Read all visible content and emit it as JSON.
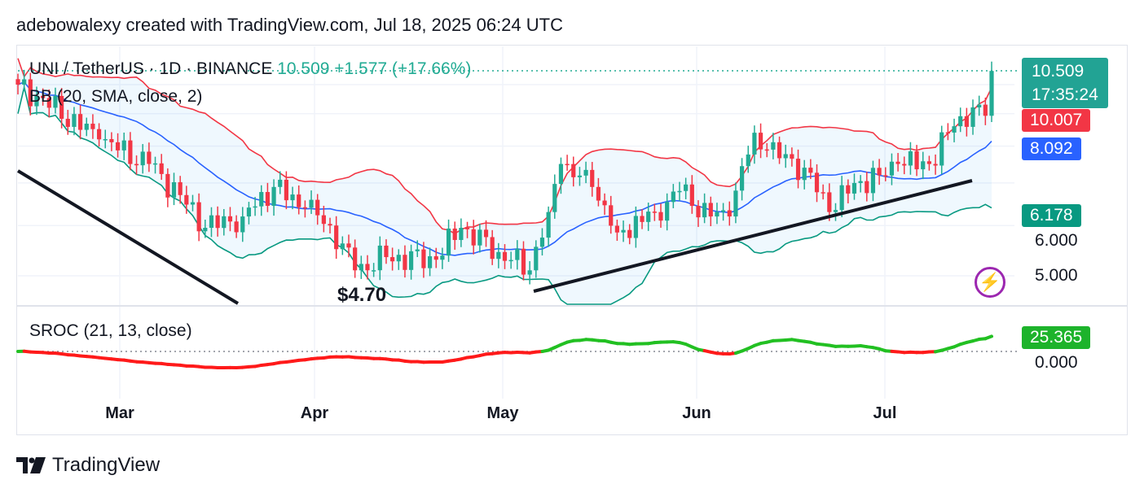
{
  "header": {
    "text": "adebowalexy created with TradingView.com, Jul 18, 2025 06:24 UTC"
  },
  "legend": {
    "symbol": "UNI / TetherUS · 1D · BINANCE",
    "quote": "10.509 +1.577 (+17.66%)",
    "bb": "BB (20, SMA, close, 2)",
    "sroc": "SROC (21, 13, close)"
  },
  "price_badges": {
    "last": "10.509",
    "countdown": "17:35:24",
    "bb_upper": "10.007",
    "bb_basis": "8.092",
    "bb_lower": "6.178",
    "sroc": "25.365"
  },
  "price_axis": {
    "ticks": [
      "5.000",
      "6.000"
    ],
    "sroc_ticks": [
      "0.000"
    ]
  },
  "annotation": "$4.70",
  "footer": {
    "brand": "TradingView"
  },
  "colors": {
    "up": "#22ab94",
    "down": "#f23645",
    "basis": "#2962ff",
    "upper": "#f23645",
    "lower": "#089981",
    "sroc_pos": "#22c022",
    "sroc_neg": "#ff1a1a"
  },
  "chart_data": {
    "type": "candlestick",
    "title": "UNI / TetherUS · 1D · BINANCE",
    "scale": "log",
    "x_ticks": [
      "Mar",
      "Apr",
      "May",
      "Jun",
      "Jul"
    ],
    "start_date": "2025-02-12",
    "end_date": "2025-07-18",
    "close_keypoints": [
      [
        "2025-02-12",
        10.0
      ],
      [
        "2025-02-25",
        8.2
      ],
      [
        "2025-03-05",
        7.5
      ],
      [
        "2025-03-10",
        6.7
      ],
      [
        "2025-03-14",
        5.95
      ],
      [
        "2025-03-20",
        6.2
      ],
      [
        "2025-03-25",
        6.9
      ],
      [
        "2025-03-30",
        6.4
      ],
      [
        "2025-04-03",
        6.0
      ],
      [
        "2025-04-07",
        5.1
      ],
      [
        "2025-04-12",
        5.35
      ],
      [
        "2025-04-20",
        5.3
      ],
      [
        "2025-04-24",
        5.95
      ],
      [
        "2025-04-30",
        5.45
      ],
      [
        "2025-05-05",
        5.1
      ],
      [
        "2025-05-08",
        6.3
      ],
      [
        "2025-05-10",
        7.5
      ],
      [
        "2025-05-15",
        6.9
      ],
      [
        "2025-05-19",
        5.85
      ],
      [
        "2025-05-25",
        6.3
      ],
      [
        "2025-05-29",
        6.8
      ],
      [
        "2025-06-03",
        6.2
      ],
      [
        "2025-06-06",
        6.2
      ],
      [
        "2025-06-10",
        8.4
      ],
      [
        "2025-06-12",
        7.9
      ],
      [
        "2025-06-18",
        7.4
      ],
      [
        "2025-06-22",
        6.3
      ],
      [
        "2025-06-26",
        7.0
      ],
      [
        "2025-06-30",
        7.2
      ],
      [
        "2025-07-03",
        7.5
      ],
      [
        "2025-07-08",
        7.5
      ],
      [
        "2025-07-12",
        8.6
      ],
      [
        "2025-07-16",
        9.3
      ],
      [
        "2025-07-17",
        8.932
      ],
      [
        "2025-07-18",
        10.509
      ]
    ],
    "last_price": 10.509,
    "change": 1.577,
    "change_pct": 17.66,
    "low_annotation": 4.7,
    "indicators": {
      "bb": {
        "length": 20,
        "mult": 2,
        "upper": 10.007,
        "basis": 8.092,
        "lower": 6.178
      },
      "sroc": {
        "roc": 21,
        "ema": 13,
        "last": 25.365
      }
    }
  }
}
